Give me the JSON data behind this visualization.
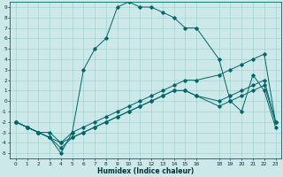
{
  "xlabel": "Humidex (Indice chaleur)",
  "bg_color": "#cce8e8",
  "grid_color": "#99cccc",
  "line_color": "#006666",
  "xlim": [
    -0.5,
    23.5
  ],
  "ylim": [
    -5.5,
    9.5
  ],
  "xticks": [
    0,
    1,
    2,
    3,
    4,
    5,
    6,
    7,
    8,
    9,
    10,
    11,
    12,
    13,
    14,
    15,
    16,
    18,
    19,
    20,
    21,
    22,
    23
  ],
  "yticks": [
    -5,
    -4,
    -3,
    -2,
    -1,
    0,
    1,
    2,
    3,
    4,
    5,
    6,
    7,
    8,
    9
  ],
  "line_main_x": [
    0,
    1,
    2,
    3,
    4,
    5,
    6,
    7,
    8,
    9,
    10,
    11,
    12,
    13,
    14,
    15,
    16,
    18,
    19,
    20,
    21,
    22,
    23
  ],
  "line_main_y": [
    -2,
    -2.5,
    -3,
    -3.5,
    -5,
    -3,
    3,
    5,
    6,
    9,
    9.5,
    9,
    9,
    8.5,
    8,
    7,
    7,
    4,
    0,
    -1,
    2.5,
    1,
    -2.5
  ],
  "line_flat1_x": [
    0,
    1,
    2,
    3,
    4,
    5,
    6,
    7,
    8,
    9,
    10,
    11,
    12,
    13,
    14,
    15,
    16,
    18,
    19,
    20,
    21,
    22,
    23
  ],
  "line_flat1_y": [
    -2,
    -2.5,
    -3,
    -3.5,
    -4,
    -3.5,
    -3,
    -2.5,
    -2,
    -1.5,
    -1,
    -0.5,
    0,
    0.5,
    1,
    1,
    0.5,
    0,
    0.5,
    1,
    1.5,
    2,
    -2
  ],
  "line_flat2_x": [
    0,
    1,
    2,
    3,
    4,
    5,
    6,
    7,
    8,
    9,
    10,
    11,
    12,
    13,
    14,
    15,
    16,
    18,
    19,
    20,
    21,
    22,
    23
  ],
  "line_flat2_y": [
    -2,
    -2.5,
    -3,
    -3.5,
    -4.5,
    -3.5,
    -3,
    -2.5,
    -2,
    -1.5,
    -1,
    -0.5,
    0,
    0.5,
    1,
    1,
    0.5,
    -0.5,
    0,
    0.5,
    1,
    1.5,
    -2
  ],
  "line_flat3_x": [
    0,
    1,
    2,
    3,
    4,
    5,
    6,
    7,
    8,
    9,
    10,
    11,
    12,
    13,
    14,
    15,
    16,
    18,
    19,
    20,
    21,
    22,
    23
  ],
  "line_flat3_y": [
    -2,
    -2.5,
    -3,
    -3,
    -4,
    -3,
    -2.5,
    -2,
    -1.5,
    -1,
    -0.5,
    0,
    0.5,
    1,
    1.5,
    2,
    2,
    2.5,
    3,
    3.5,
    4,
    4.5,
    -2
  ]
}
